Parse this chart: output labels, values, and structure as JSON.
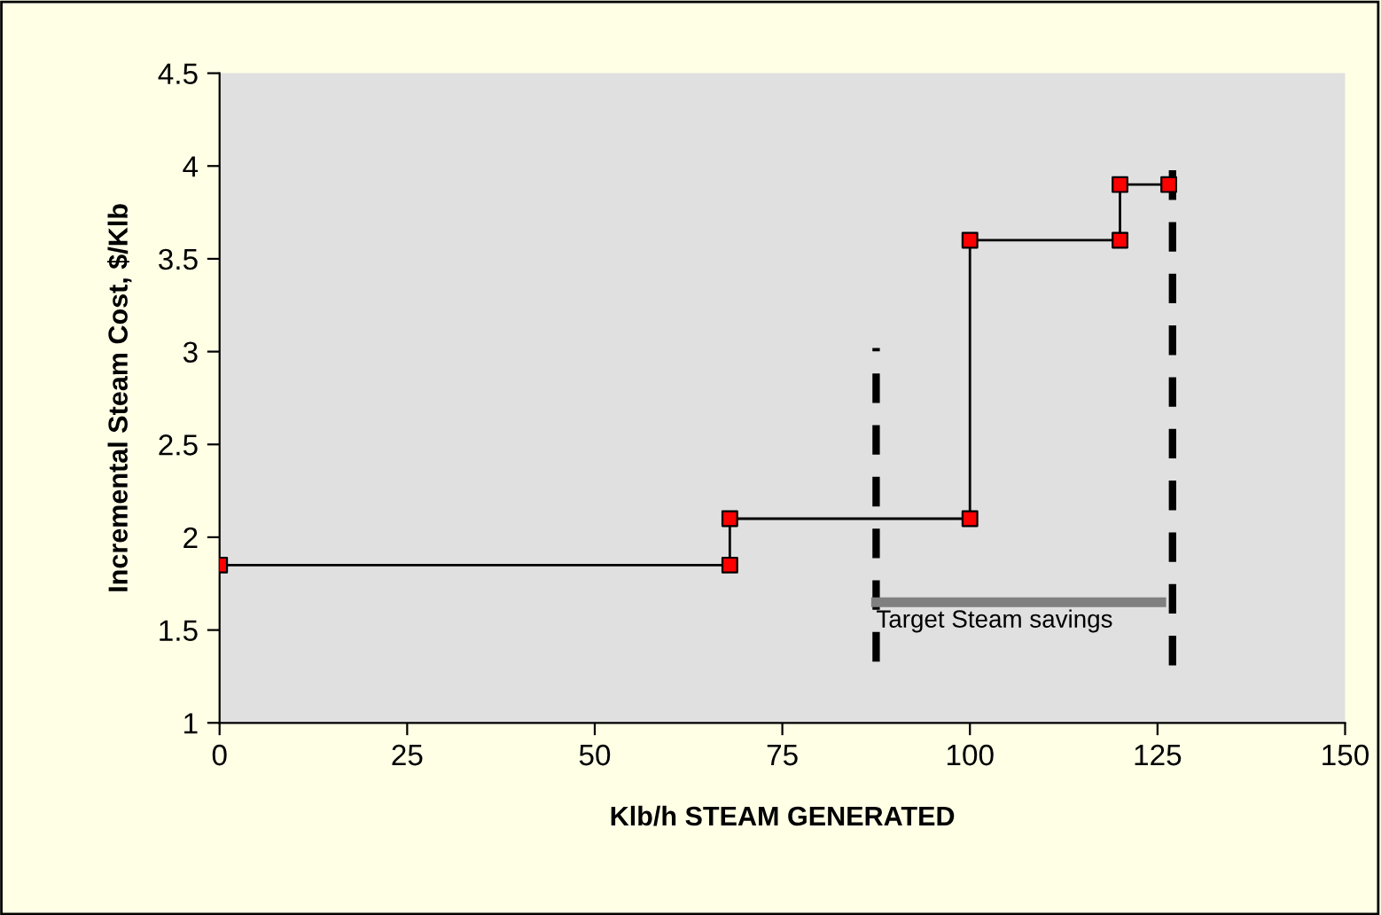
{
  "chart_data": {
    "type": "line",
    "xlabel": "Klb/h STEAM GENERATED",
    "ylabel": "Incremental Steam Cost, $/Klb",
    "xlim": [
      0,
      150
    ],
    "xticks": [
      0,
      25,
      50,
      75,
      100,
      125,
      150
    ],
    "ylim": [
      1,
      4.5
    ],
    "yticks": [
      1,
      1.5,
      2,
      2.5,
      3,
      3.5,
      4,
      4.5
    ],
    "grid": false,
    "legend": false,
    "series": [
      {
        "color": "#000000",
        "marker": "none",
        "line_style": "solid",
        "x": [
          0,
          68,
          68,
          100,
          100,
          120,
          120,
          126.5
        ],
        "values": [
          1.85,
          1.85,
          2.1,
          2.1,
          3.6,
          3.6,
          3.9,
          3.9
        ]
      },
      {
        "type": "scatter",
        "color": "#ff0000",
        "marker": "square",
        "x": [
          0,
          68,
          68,
          100,
          100,
          120,
          120,
          126.5
        ],
        "values": [
          1.85,
          1.85,
          2.1,
          2.1,
          3.6,
          3.6,
          3.9,
          3.9
        ]
      },
      {
        "color": "#000000",
        "marker": "none",
        "line_style": "dashed",
        "x": [
          87.5,
          87.5
        ],
        "values": [
          1.33,
          3.02
        ]
      },
      {
        "color": "#000000",
        "marker": "none",
        "line_style": "dashed",
        "x": [
          127,
          127
        ],
        "values": [
          1.31,
          4.0
        ]
      },
      {
        "color": "#808080",
        "marker": "none",
        "line_style": "solid",
        "x": [
          87.5,
          125.5
        ],
        "values": [
          1.65,
          1.65
        ]
      }
    ],
    "annotations": [
      {
        "text": "Target Steam savings",
        "x": 87.5,
        "y": 1.65
      }
    ]
  }
}
